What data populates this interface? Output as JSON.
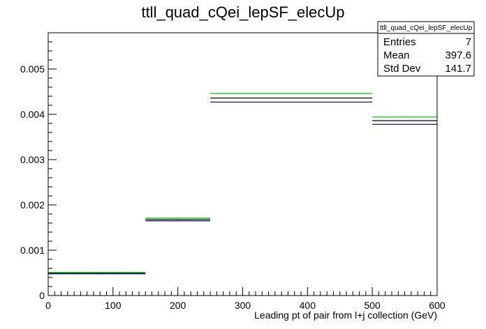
{
  "colors": {
    "background": "#ffffff",
    "frame": "#000000",
    "series_colors": [
      "#00cc00",
      "#000000",
      "#000080"
    ]
  },
  "chart_data": {
    "type": "step",
    "title": "ttll_quad_cQei_lepSF_elecUp",
    "xlabel": "Leading pt of pair from l+j collection (GeV)",
    "ylabel": "",
    "xlim": [
      0,
      600
    ],
    "ylim": [
      0,
      0.0058
    ],
    "x_ticks": [
      "0",
      "100",
      "200",
      "300",
      "400",
      "500",
      "600"
    ],
    "y_ticks": [
      "0",
      "0.001",
      "0.002",
      "0.003",
      "0.004",
      "0.005"
    ],
    "bin_edges": [
      0,
      150,
      250,
      500,
      600
    ],
    "series": [
      {
        "color": "#00cc00",
        "values": [
          0.00051,
          0.00171,
          0.00446,
          0.00394
        ]
      },
      {
        "color": "#000000",
        "values": [
          0.00049,
          0.00168,
          0.00436,
          0.00386
        ]
      },
      {
        "color": "#000080",
        "values": [
          0.00048,
          0.00165,
          0.00427,
          0.00378
        ]
      }
    ],
    "stats_box": {
      "title": "ttll_quad_cQei_lepSF_elecUp",
      "rows": [
        {
          "label": "Entries",
          "value": "7"
        },
        {
          "label": "Mean",
          "value": "397.6"
        },
        {
          "label": "Std Dev",
          "value": "141.7"
        }
      ]
    },
    "grid": false,
    "legend": "none"
  }
}
